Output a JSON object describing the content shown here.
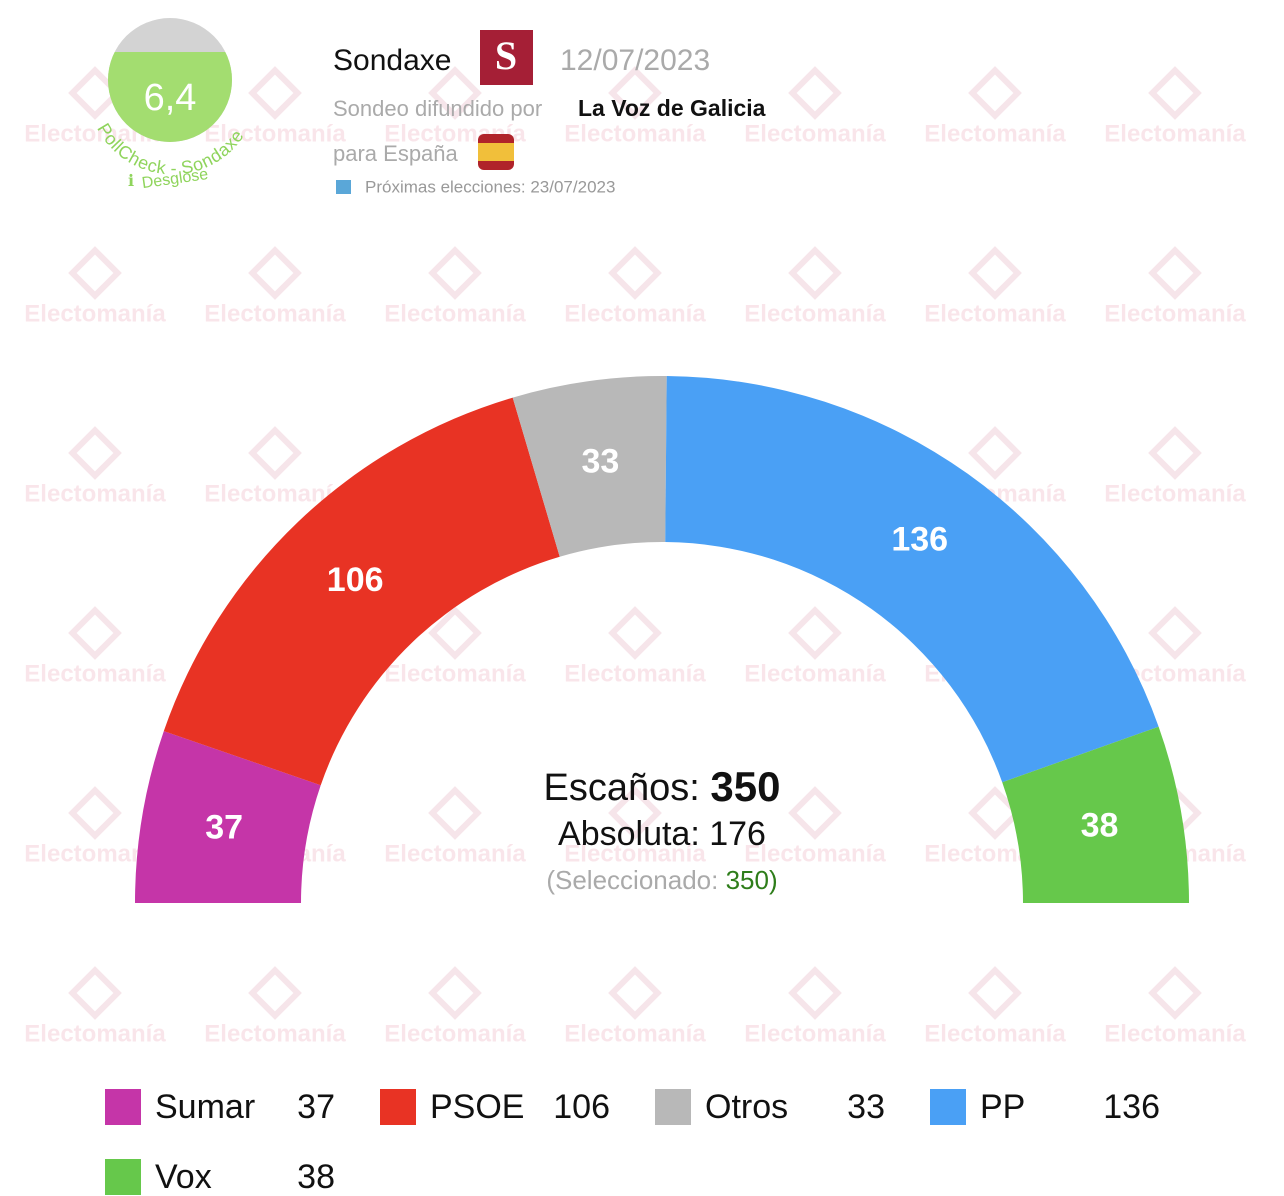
{
  "watermark": "Electomanía",
  "pollcheck": {
    "score": "6,4",
    "label": "PollCheck - Sondaxe",
    "link": "Desglose"
  },
  "header": {
    "pollster": "Sondaxe",
    "date": "12/07/2023",
    "published_by": "Sondeo difundido por",
    "outlet": "La Voz de Galicia",
    "scope": "para España",
    "next_elections": "Próximas elecciones: 23/07/2023"
  },
  "chart_data": {
    "type": "parliament",
    "series": [
      {
        "name": "Sumar",
        "color": "#c535a8",
        "values": [
          37
        ]
      },
      {
        "name": "PSOE",
        "color": "#e83324",
        "values": [
          106
        ]
      },
      {
        "name": "Otros",
        "color": "#b8b8b8",
        "values": [
          33
        ]
      },
      {
        "name": "PP",
        "color": "#4aa0f5",
        "values": [
          136
        ]
      },
      {
        "name": "Vox",
        "color": "#66c84b",
        "values": [
          38
        ]
      }
    ],
    "summary": {
      "seats_label": "Escaños:",
      "seats": 350,
      "majority_label": "Absoluta:",
      "majority": 176,
      "selected_open": "(Seleccionado:",
      "selected": 350,
      "selected_close": ")"
    }
  }
}
